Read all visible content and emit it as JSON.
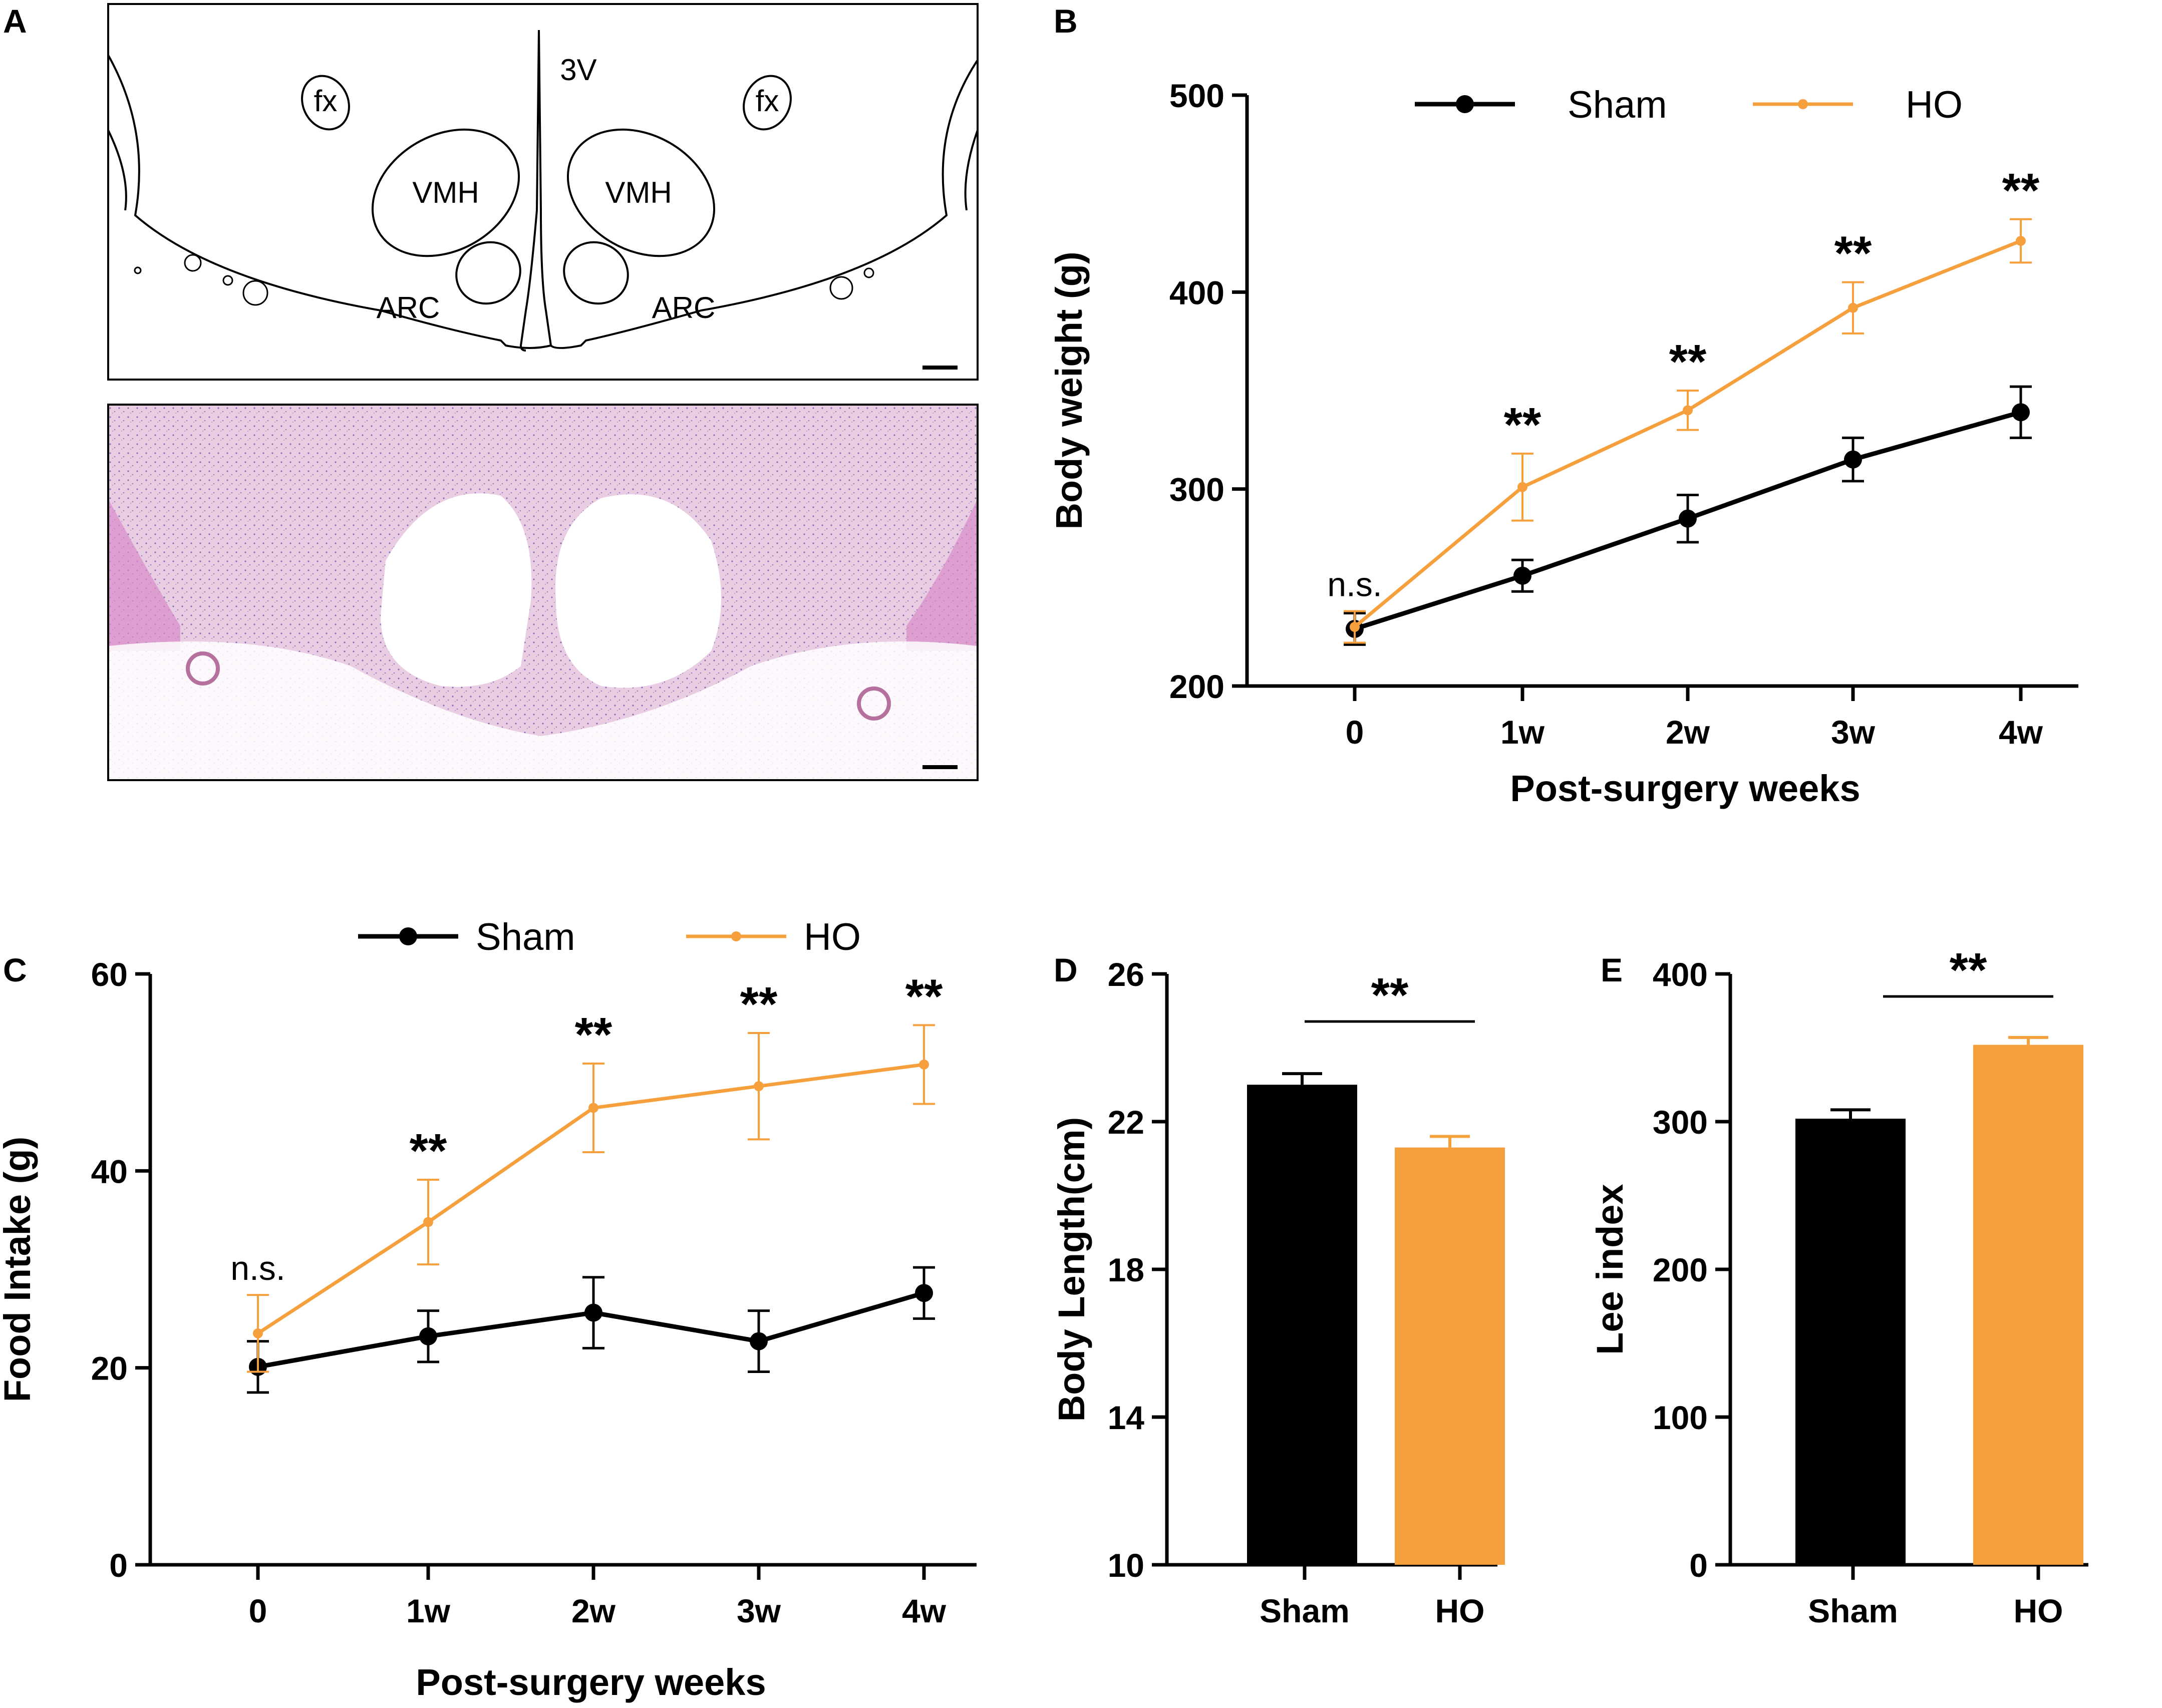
{
  "panels": {
    "A": "A",
    "B": "B",
    "C": "C",
    "D": "D",
    "E": "E"
  },
  "panel_a": {
    "labels": {
      "fx_left": "fx",
      "fx_right": "fx",
      "third_ventricle": "3V",
      "vmh_left": "VMH",
      "vmh_right": "VMH",
      "arc_left": "ARC",
      "arc_right": "ARC"
    }
  },
  "colors": {
    "sham": "#000000",
    "ho": "#F5A03C",
    "he_pink": "#E8CDE3",
    "he_purple": "#C9A6D6"
  },
  "chart_data": [
    {
      "id": "B",
      "type": "line",
      "title": "",
      "xlabel": "Post-surgery weeks",
      "ylabel": "Body weight (g)",
      "categories": [
        "0",
        "1w",
        "2w",
        "3w",
        "4w"
      ],
      "ylim": [
        200,
        500
      ],
      "yticks": [
        "200",
        "300",
        "400",
        "500"
      ],
      "legend": [
        "Sham",
        "HO"
      ],
      "legend_position": "top",
      "series": [
        {
          "name": "Sham",
          "values": [
            229,
            256,
            285,
            315,
            339
          ],
          "errors": [
            8,
            8,
            12,
            11,
            13
          ]
        },
        {
          "name": "HO",
          "values": [
            230,
            301,
            340,
            392,
            426
          ],
          "errors": [
            8,
            17,
            10,
            13,
            11
          ]
        }
      ],
      "annotations": [
        "n.s.",
        "**",
        "**",
        "**",
        "**"
      ]
    },
    {
      "id": "C",
      "type": "line",
      "title": "",
      "xlabel": "Post-surgery weeks",
      "ylabel": "Food Intake (g)",
      "categories": [
        "0",
        "1w",
        "2w",
        "3w",
        "4w"
      ],
      "ylim": [
        0,
        60
      ],
      "yticks": [
        "0",
        "20",
        "40",
        "60"
      ],
      "legend": [
        "Sham",
        "HO"
      ],
      "legend_position": "top",
      "series": [
        {
          "name": "Sham",
          "values": [
            20.1,
            23.2,
            25.6,
            22.7,
            27.6
          ],
          "errors": [
            2.6,
            2.6,
            3.6,
            3.1,
            2.6
          ]
        },
        {
          "name": "HO",
          "values": [
            23.5,
            34.8,
            46.4,
            48.6,
            50.8
          ],
          "errors": [
            3.9,
            4.3,
            4.5,
            5.4,
            4.0
          ]
        }
      ],
      "annotations": [
        "n.s.",
        "**",
        "**",
        "**",
        "**"
      ]
    },
    {
      "id": "D",
      "type": "bar",
      "title": "",
      "xlabel": "",
      "ylabel": "Body Length(cm)",
      "categories": [
        "Sham",
        "HO"
      ],
      "values": [
        23.0,
        21.3
      ],
      "errors": [
        0.3,
        0.3
      ],
      "ylim": [
        10,
        26
      ],
      "yticks": [
        "10",
        "14",
        "18",
        "22",
        "26"
      ],
      "annotations": [
        "**"
      ]
    },
    {
      "id": "E",
      "type": "bar",
      "title": "",
      "xlabel": "",
      "ylabel": "Lee index",
      "categories": [
        "Sham",
        "HO"
      ],
      "values": [
        302,
        352
      ],
      "errors": [
        6,
        5
      ],
      "ylim": [
        0,
        400
      ],
      "yticks": [
        "0",
        "100",
        "200",
        "300",
        "400"
      ],
      "annotations": [
        "**"
      ]
    }
  ]
}
